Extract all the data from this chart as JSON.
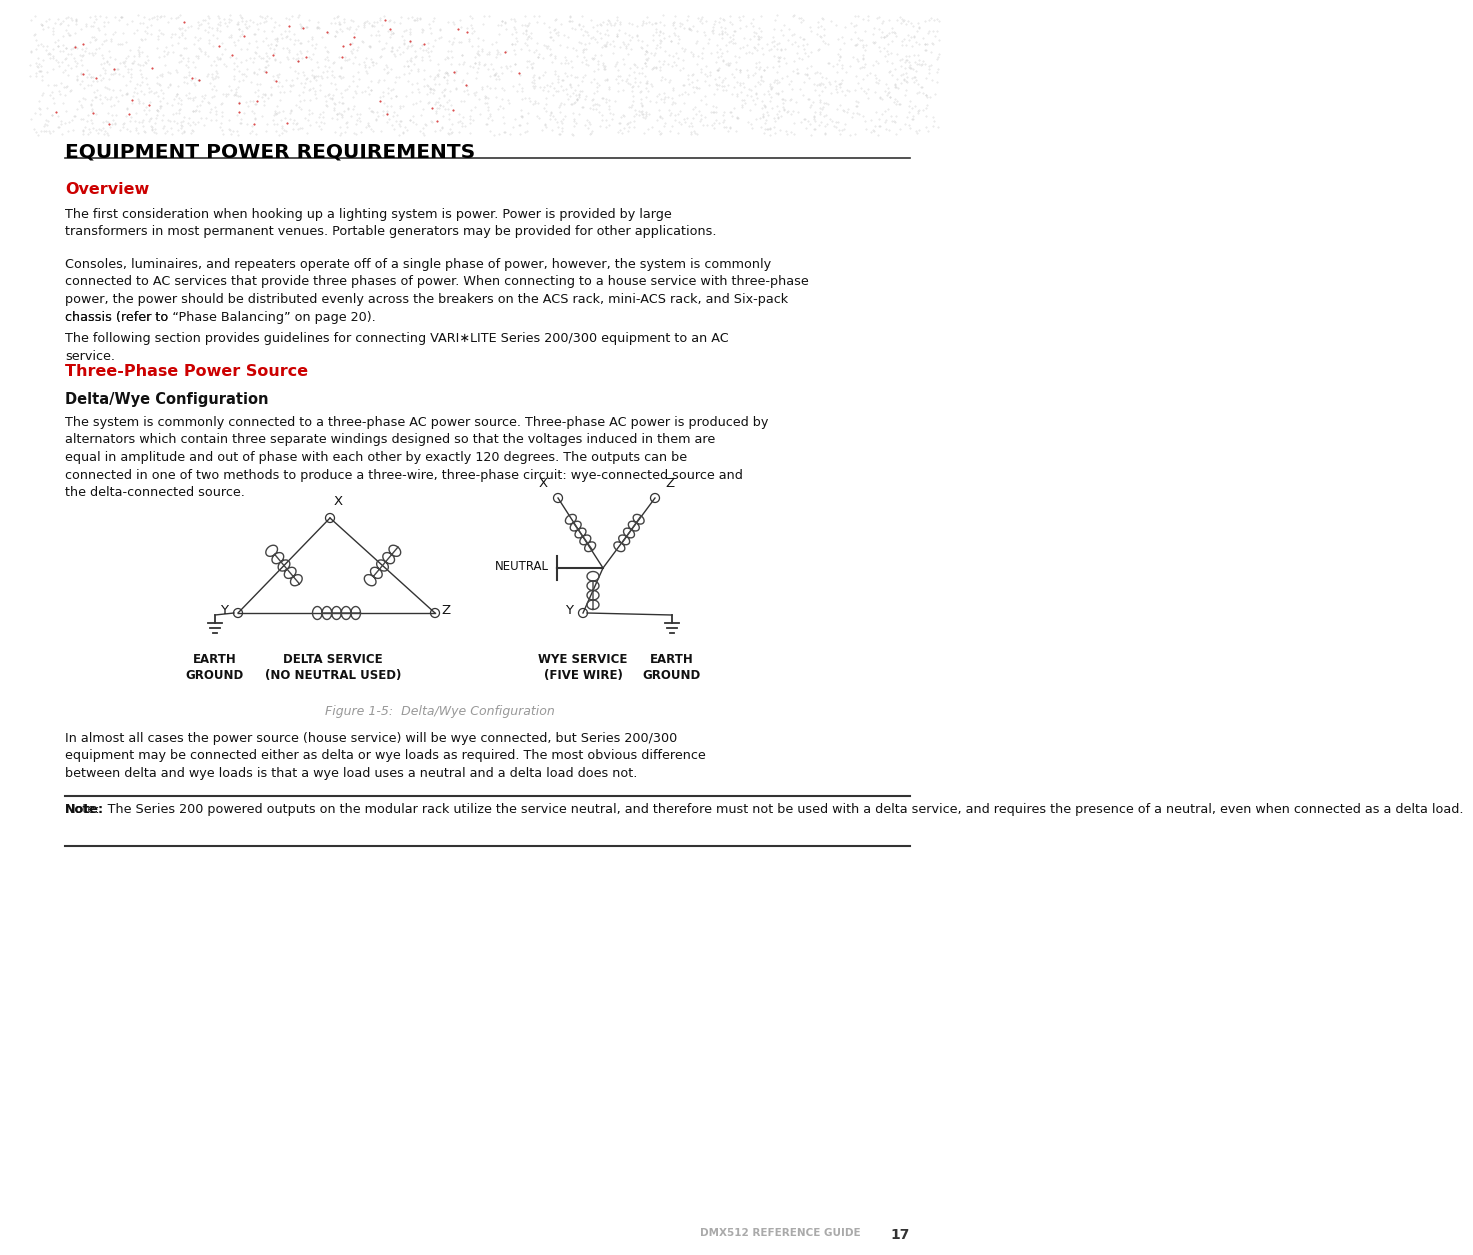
{
  "title": "EQUIPMENT POWER REQUIREMENTS",
  "overview_heading": "Overview",
  "overview_heading_color": "#cc0000",
  "overview_p1": "The first consideration when hooking up a lighting system is power. Power is provided by large transformers in most permanent venues. Portable generators may be provided for other applications.",
  "overview_p2a": "Consoles, luminaires, and repeaters operate off of a single phase of power, however, the system is commonly connected to AC services that provide three phases of power. When connecting to a house service with three-phase power, the power should be distributed evenly across the breakers on the ACS rack, mini-ACS rack, and Six-pack chassis (refer to ",
  "overview_p2_link": "“Phase Balancing” on page 20",
  "overview_p2b": ").",
  "overview_p3": "The following section provides guidelines for connecting VARI∗LITE Series 200/300 equipment to an AC service.",
  "threephase_heading": "Three-Phase Power Source",
  "threephase_heading_color": "#cc0000",
  "delta_wye_heading": "Delta/Wye Configuration",
  "delta_wye_body": "The system is commonly connected to a three-phase AC power source. Three-phase AC power is produced by alternators which contain three separate windings designed so that the voltages induced in them are equal in amplitude and out of phase with each other by exactly 120 degrees. The outputs can be connected in one of two methods to produce a three-wire, three-phase circuit: wye-connected source and the delta-connected source.",
  "figure_caption": "Figure 1-5:  Delta/Wye Configuration",
  "after_figure_p": "In almost all cases the power source (house service) will be wye connected, but Series 200/300 equipment may be connected either as delta or wye loads as required. The most obvious difference between delta and wye loads is that a wye load uses a neutral and a delta load does not.",
  "note_label": "Note:",
  "note_text": "  The Series 200 powered outputs on the modular rack utilize the service neutral, and therefore must not be used with a delta service, and requires the presence of a neutral, even when connected as a delta load.",
  "footer_text": "DMX512 REFERENCE GUIDE",
  "footer_page": "17",
  "bg_color": "#ffffff",
  "text_color": "#111111",
  "link_color": "#cc0000"
}
